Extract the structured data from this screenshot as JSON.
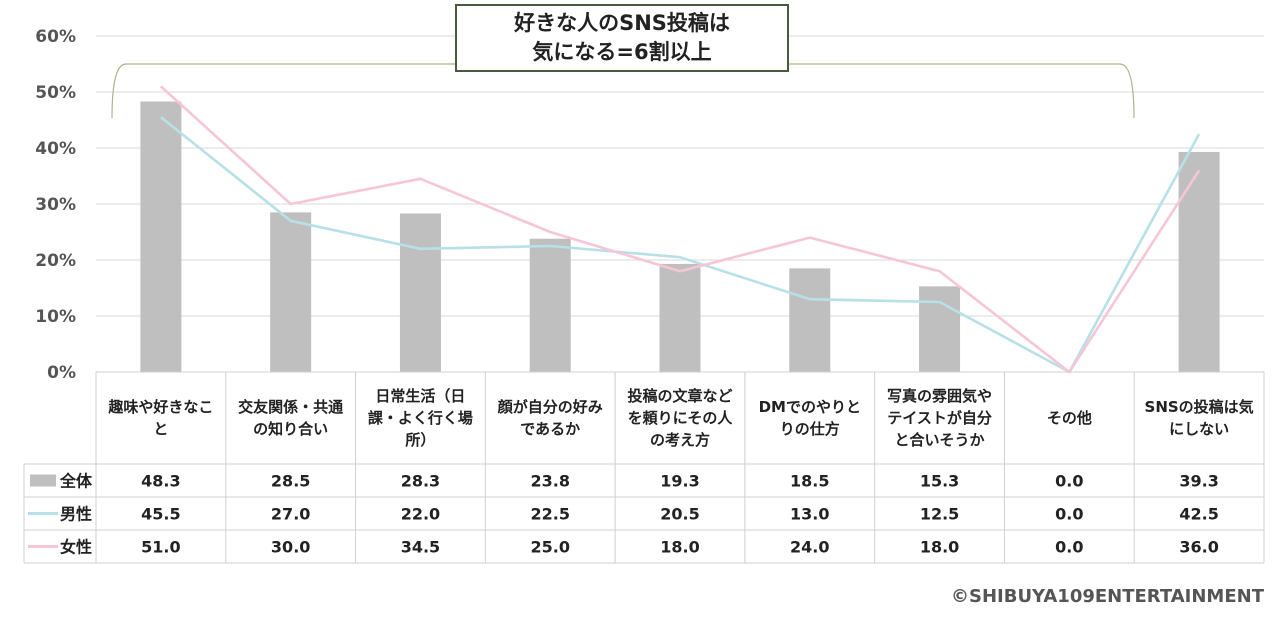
{
  "callout": {
    "line1": "好きな人のSNS投稿は",
    "line2": "気になる=6割以上"
  },
  "copyright": "©SHIBUYA109ENTERTAINMENT",
  "chart_data": {
    "type": "bar",
    "ylim": [
      0,
      60
    ],
    "yticks": [
      "0%",
      "10%",
      "20%",
      "30%",
      "40%",
      "50%",
      "60%"
    ],
    "grid": true,
    "categories": [
      [
        "趣味や好きなこ",
        "と"
      ],
      [
        "交友関係・共通",
        "の知り合い"
      ],
      [
        "日常生活（日",
        "課・よく行く場",
        "所）"
      ],
      [
        "顔が自分の好み",
        "であるか"
      ],
      [
        "投稿の文章など",
        "を頼りにその人",
        "の考え方"
      ],
      [
        "DMでのやりと",
        "りの仕方"
      ],
      [
        "写真の雰囲気や",
        "テイストが自分",
        "と合いそうか"
      ],
      [
        "その他"
      ],
      [
        "SNSの投稿は気",
        "にしない"
      ]
    ],
    "series": [
      {
        "name": "全体",
        "type": "bar",
        "color": "#bfbfbf",
        "values": [
          48.3,
          28.5,
          28.3,
          23.8,
          19.3,
          18.5,
          15.3,
          0.0,
          39.3
        ],
        "labels": [
          "48.3",
          "28.5",
          "28.3",
          "23.8",
          "19.3",
          "18.5",
          "15.3",
          "0.0",
          "39.3"
        ]
      },
      {
        "name": "男性",
        "type": "line",
        "color": "#b8e0e8",
        "values": [
          45.5,
          27.0,
          22.0,
          22.5,
          20.5,
          13.0,
          12.5,
          0.0,
          42.5
        ],
        "labels": [
          "45.5",
          "27.0",
          "22.0",
          "22.5",
          "20.5",
          "13.0",
          "12.5",
          "0.0",
          "42.5"
        ]
      },
      {
        "name": "女性",
        "type": "line",
        "color": "#f7c6d6",
        "values": [
          51.0,
          30.0,
          34.5,
          25.0,
          18.0,
          24.0,
          18.0,
          0.0,
          36.0
        ],
        "labels": [
          "51.0",
          "30.0",
          "34.5",
          "25.0",
          "18.0",
          "24.0",
          "18.0",
          "0.0",
          "36.0"
        ]
      }
    ],
    "bracket_color": "#a8b58a",
    "grid_color": "#d9d9d9",
    "table_border_color": "#d0d0d0"
  }
}
